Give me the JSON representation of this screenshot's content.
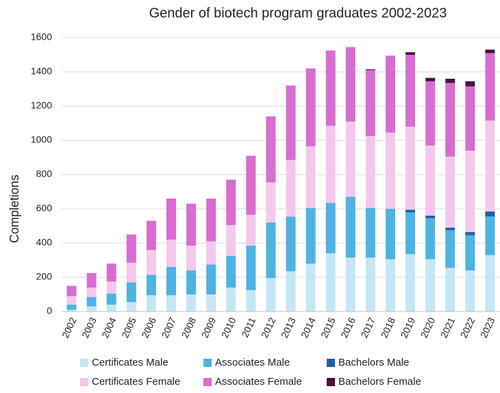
{
  "chart_data": {
    "type": "stacked_bar",
    "title": "Gender of biotech program graduates 2002-2023",
    "y_label": "Completions",
    "categories": [
      "2002",
      "2003",
      "2004",
      "2005",
      "2006",
      "2007",
      "2008",
      "2009",
      "2010",
      "2011",
      "2012",
      "2013",
      "2014",
      "2015",
      "2016",
      "2017",
      "2018",
      "2019",
      "2020",
      "2021",
      "2022",
      "2023"
    ],
    "series": [
      {
        "name": "Certificates Male",
        "color": "#c5e6f5",
        "values": [
          10,
          30,
          40,
          55,
          95,
          95,
          100,
          100,
          140,
          125,
          195,
          235,
          280,
          340,
          315,
          315,
          305,
          335,
          305,
          255,
          240,
          330
        ]
      },
      {
        "name": "Associates Male",
        "color": "#4db3e2",
        "values": [
          30,
          55,
          65,
          115,
          120,
          165,
          140,
          175,
          185,
          260,
          325,
          320,
          325,
          295,
          355,
          290,
          295,
          245,
          240,
          220,
          205,
          225
        ]
      },
      {
        "name": "Bachelors Male",
        "color": "#1f5fa8",
        "values": [
          0,
          0,
          0,
          0,
          0,
          0,
          0,
          0,
          0,
          0,
          0,
          0,
          0,
          0,
          0,
          0,
          0,
          15,
          15,
          15,
          20,
          30
        ]
      },
      {
        "name": "Certificates Female",
        "color": "#f4c8ec",
        "values": [
          50,
          55,
          70,
          115,
          145,
          160,
          145,
          135,
          180,
          180,
          235,
          330,
          360,
          450,
          440,
          420,
          445,
          485,
          410,
          415,
          475,
          530
        ]
      },
      {
        "name": "Associates Female",
        "color": "#d96cd1",
        "values": [
          60,
          85,
          105,
          165,
          170,
          240,
          245,
          250,
          265,
          345,
          385,
          435,
          455,
          440,
          435,
          385,
          450,
          420,
          375,
          430,
          375,
          395
        ]
      },
      {
        "name": "Bachelors Female",
        "color": "#4a1040",
        "values": [
          0,
          0,
          0,
          0,
          0,
          0,
          0,
          0,
          0,
          0,
          0,
          0,
          0,
          0,
          0,
          5,
          0,
          15,
          20,
          25,
          30,
          20
        ]
      }
    ],
    "ylim": [
      0,
      1600
    ],
    "yticks": [
      0,
      200,
      400,
      600,
      800,
      1000,
      1200,
      1400,
      1600
    ],
    "grid": true
  }
}
